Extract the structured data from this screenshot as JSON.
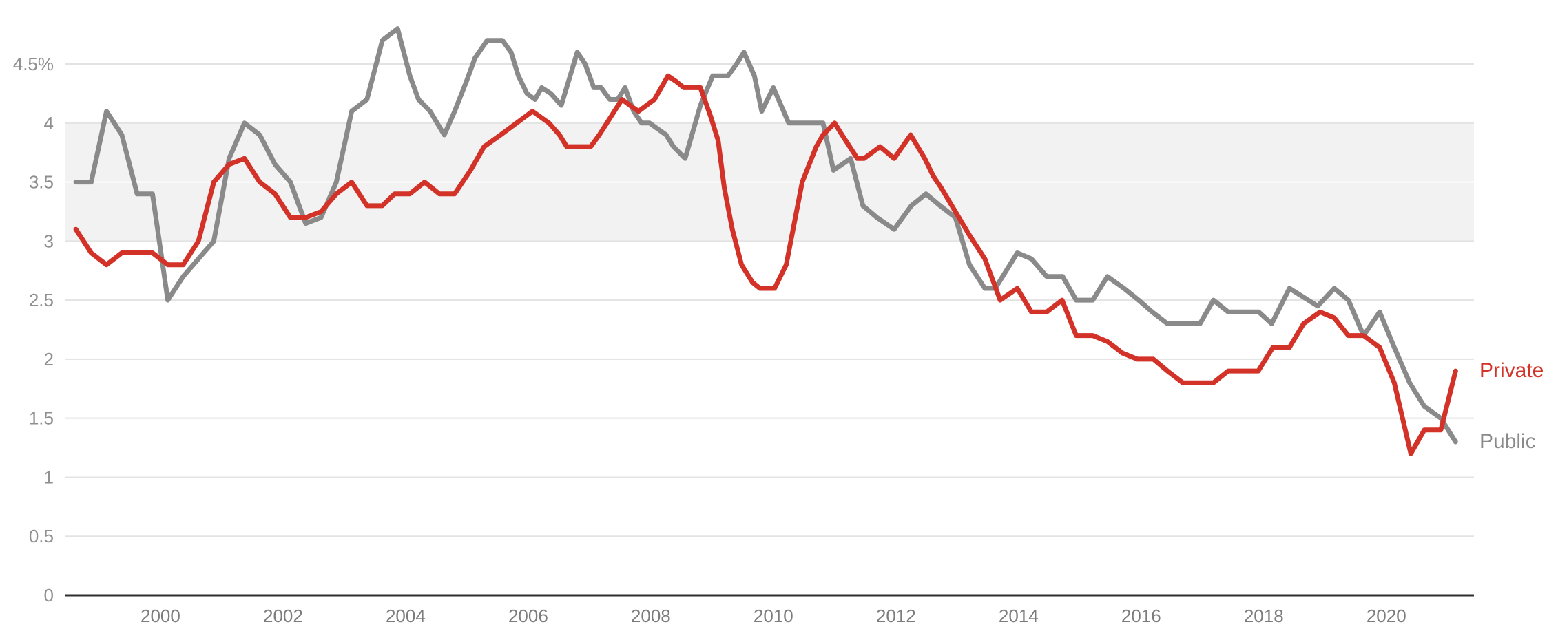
{
  "chart_data": {
    "type": "line",
    "title": "",
    "ylabel": "",
    "xlabel": "",
    "unit": "%",
    "xlim": [
      1998.45,
      2021.43
    ],
    "ylim": [
      0,
      4.85
    ],
    "grid": true,
    "legend_position": "end-of-line",
    "band": {
      "from": 3.0,
      "to": 4.0,
      "color": "#f2f2f2"
    },
    "gridline_color": "#e3e3e3",
    "band_gridline_color": "#ffffff",
    "axis_color": "#2f2f2f",
    "y_ticks": [
      {
        "label": "4.5%",
        "value": 4.5
      },
      {
        "label": "4",
        "value": 4.0
      },
      {
        "label": "3.5",
        "value": 3.5
      },
      {
        "label": "3",
        "value": 3.0
      },
      {
        "label": "2.5",
        "value": 2.5
      },
      {
        "label": "2",
        "value": 2.0
      },
      {
        "label": "1.5",
        "value": 1.5
      },
      {
        "label": "1",
        "value": 1.0
      },
      {
        "label": "0.5",
        "value": 0.5
      },
      {
        "label": "0",
        "value": 0.0
      }
    ],
    "x_ticks": [
      {
        "label": "2000",
        "value": 2000
      },
      {
        "label": "2002",
        "value": 2002
      },
      {
        "label": "2004",
        "value": 2004
      },
      {
        "label": "2006",
        "value": 2006
      },
      {
        "label": "2008",
        "value": 2008
      },
      {
        "label": "2010",
        "value": 2010
      },
      {
        "label": "2012",
        "value": 2012
      },
      {
        "label": "2014",
        "value": 2014
      },
      {
        "label": "2016",
        "value": 2016
      },
      {
        "label": "2018",
        "value": 2018
      },
      {
        "label": "2020",
        "value": 2020
      }
    ],
    "series": [
      {
        "name": "Private",
        "color": "#d23228",
        "points": [
          [
            1998.62,
            3.1
          ],
          [
            1998.87,
            2.9
          ],
          [
            1999.12,
            2.8
          ],
          [
            1999.37,
            2.9
          ],
          [
            1999.62,
            2.9
          ],
          [
            1999.87,
            2.9
          ],
          [
            2000.12,
            2.8
          ],
          [
            2000.37,
            2.8
          ],
          [
            2000.62,
            3.0
          ],
          [
            2000.87,
            3.5
          ],
          [
            2001.12,
            3.65
          ],
          [
            2001.37,
            3.7
          ],
          [
            2001.62,
            3.5
          ],
          [
            2001.87,
            3.4
          ],
          [
            2002.12,
            3.2
          ],
          [
            2002.37,
            3.2
          ],
          [
            2002.62,
            3.25
          ],
          [
            2002.87,
            3.4
          ],
          [
            2003.12,
            3.5
          ],
          [
            2003.37,
            3.3
          ],
          [
            2003.62,
            3.3
          ],
          [
            2003.82,
            3.4
          ],
          [
            2004.07,
            3.4
          ],
          [
            2004.31,
            3.5
          ],
          [
            2004.55,
            3.4
          ],
          [
            2004.8,
            3.4
          ],
          [
            2005.06,
            3.6
          ],
          [
            2005.28,
            3.8
          ],
          [
            2005.55,
            3.9
          ],
          [
            2005.81,
            4.0
          ],
          [
            2006.07,
            4.1
          ],
          [
            2006.34,
            4.0
          ],
          [
            2006.51,
            3.9
          ],
          [
            2006.63,
            3.8
          ],
          [
            2006.76,
            3.8
          ],
          [
            2007.02,
            3.8
          ],
          [
            2007.16,
            3.9
          ],
          [
            2007.53,
            4.2
          ],
          [
            2007.66,
            4.15
          ],
          [
            2007.8,
            4.1
          ],
          [
            2008.06,
            4.2
          ],
          [
            2008.28,
            4.4
          ],
          [
            2008.42,
            4.35
          ],
          [
            2008.54,
            4.3
          ],
          [
            2008.81,
            4.3
          ],
          [
            2008.98,
            4.05
          ],
          [
            2009.1,
            3.85
          ],
          [
            2009.2,
            3.45
          ],
          [
            2009.33,
            3.1
          ],
          [
            2009.48,
            2.8
          ],
          [
            2009.66,
            2.65
          ],
          [
            2009.78,
            2.6
          ],
          [
            2010.02,
            2.6
          ],
          [
            2010.21,
            2.8
          ],
          [
            2010.47,
            3.5
          ],
          [
            2010.7,
            3.8
          ],
          [
            2010.81,
            3.9
          ],
          [
            2011.0,
            4.0
          ],
          [
            2011.12,
            3.9
          ],
          [
            2011.37,
            3.7
          ],
          [
            2011.48,
            3.7
          ],
          [
            2011.74,
            3.8
          ],
          [
            2011.97,
            3.7
          ],
          [
            2012.24,
            3.9
          ],
          [
            2012.47,
            3.7
          ],
          [
            2012.61,
            3.55
          ],
          [
            2012.74,
            3.45
          ],
          [
            2012.97,
            3.25
          ],
          [
            2013.2,
            3.05
          ],
          [
            2013.45,
            2.85
          ],
          [
            2013.7,
            2.5
          ],
          [
            2013.98,
            2.6
          ],
          [
            2014.21,
            2.4
          ],
          [
            2014.46,
            2.4
          ],
          [
            2014.71,
            2.5
          ],
          [
            2014.94,
            2.2
          ],
          [
            2015.21,
            2.2
          ],
          [
            2015.45,
            2.15
          ],
          [
            2015.7,
            2.05
          ],
          [
            2015.94,
            2.0
          ],
          [
            2016.2,
            2.0
          ],
          [
            2016.43,
            1.9
          ],
          [
            2016.68,
            1.8
          ],
          [
            2016.94,
            1.8
          ],
          [
            2017.18,
            1.8
          ],
          [
            2017.42,
            1.9
          ],
          [
            2017.91,
            1.9
          ],
          [
            2018.15,
            2.1
          ],
          [
            2018.42,
            2.1
          ],
          [
            2018.65,
            2.3
          ],
          [
            2018.92,
            2.4
          ],
          [
            2019.15,
            2.35
          ],
          [
            2019.38,
            2.2
          ],
          [
            2019.63,
            2.2
          ],
          [
            2019.89,
            2.1
          ],
          [
            2020.13,
            1.8
          ],
          [
            2020.4,
            1.2
          ],
          [
            2020.62,
            1.4
          ],
          [
            2020.89,
            1.4
          ],
          [
            2021.13,
            1.9
          ]
        ]
      },
      {
        "name": "Public",
        "color": "#8a8a8a",
        "points": [
          [
            1998.62,
            3.5
          ],
          [
            1998.87,
            3.5
          ],
          [
            1999.12,
            4.1
          ],
          [
            1999.37,
            3.9
          ],
          [
            1999.62,
            3.4
          ],
          [
            1999.87,
            3.4
          ],
          [
            2000.12,
            2.5
          ],
          [
            2000.37,
            2.7
          ],
          [
            2000.62,
            2.85
          ],
          [
            2000.87,
            3.0
          ],
          [
            2001.12,
            3.7
          ],
          [
            2001.37,
            4.0
          ],
          [
            2001.62,
            3.9
          ],
          [
            2001.87,
            3.65
          ],
          [
            2002.12,
            3.5
          ],
          [
            2002.37,
            3.15
          ],
          [
            2002.62,
            3.2
          ],
          [
            2002.87,
            3.5
          ],
          [
            2003.12,
            4.1
          ],
          [
            2003.37,
            4.2
          ],
          [
            2003.62,
            4.7
          ],
          [
            2003.87,
            4.8
          ],
          [
            2004.07,
            4.4
          ],
          [
            2004.21,
            4.2
          ],
          [
            2004.4,
            4.1
          ],
          [
            2004.63,
            3.9
          ],
          [
            2004.8,
            4.1
          ],
          [
            2004.99,
            4.35
          ],
          [
            2005.13,
            4.55
          ],
          [
            2005.33,
            4.7
          ],
          [
            2005.58,
            4.7
          ],
          [
            2005.72,
            4.6
          ],
          [
            2005.84,
            4.4
          ],
          [
            2005.98,
            4.25
          ],
          [
            2006.11,
            4.2
          ],
          [
            2006.22,
            4.3
          ],
          [
            2006.37,
            4.25
          ],
          [
            2006.54,
            4.15
          ],
          [
            2006.8,
            4.6
          ],
          [
            2006.93,
            4.5
          ],
          [
            2007.07,
            4.3
          ],
          [
            2007.19,
            4.3
          ],
          [
            2007.33,
            4.2
          ],
          [
            2007.46,
            4.2
          ],
          [
            2007.58,
            4.3
          ],
          [
            2007.72,
            4.1
          ],
          [
            2007.85,
            4.0
          ],
          [
            2007.98,
            4.0
          ],
          [
            2008.25,
            3.9
          ],
          [
            2008.37,
            3.8
          ],
          [
            2008.56,
            3.7
          ],
          [
            2008.81,
            4.15
          ],
          [
            2009.01,
            4.4
          ],
          [
            2009.26,
            4.4
          ],
          [
            2009.4,
            4.5
          ],
          [
            2009.52,
            4.6
          ],
          [
            2009.69,
            4.4
          ],
          [
            2009.81,
            4.1
          ],
          [
            2010.0,
            4.3
          ],
          [
            2010.25,
            4.0
          ],
          [
            2010.81,
            4.0
          ],
          [
            2010.98,
            3.6
          ],
          [
            2011.26,
            3.7
          ],
          [
            2011.46,
            3.3
          ],
          [
            2011.69,
            3.2
          ],
          [
            2011.97,
            3.1
          ],
          [
            2012.25,
            3.3
          ],
          [
            2012.49,
            3.4
          ],
          [
            2012.72,
            3.3
          ],
          [
            2012.97,
            3.2
          ],
          [
            2013.2,
            2.8
          ],
          [
            2013.45,
            2.6
          ],
          [
            2013.62,
            2.6
          ],
          [
            2013.98,
            2.9
          ],
          [
            2014.21,
            2.85
          ],
          [
            2014.46,
            2.7
          ],
          [
            2014.72,
            2.7
          ],
          [
            2014.94,
            2.5
          ],
          [
            2015.21,
            2.5
          ],
          [
            2015.45,
            2.7
          ],
          [
            2015.72,
            2.6
          ],
          [
            2015.96,
            2.5
          ],
          [
            2016.18,
            2.4
          ],
          [
            2016.43,
            2.3
          ],
          [
            2016.96,
            2.3
          ],
          [
            2017.18,
            2.5
          ],
          [
            2017.42,
            2.4
          ],
          [
            2017.92,
            2.4
          ],
          [
            2018.13,
            2.3
          ],
          [
            2018.42,
            2.6
          ],
          [
            2018.88,
            2.45
          ],
          [
            2019.15,
            2.6
          ],
          [
            2019.38,
            2.5
          ],
          [
            2019.63,
            2.2
          ],
          [
            2019.89,
            2.4
          ],
          [
            2020.13,
            2.1
          ],
          [
            2020.38,
            1.8
          ],
          [
            2020.62,
            1.6
          ],
          [
            2020.89,
            1.5
          ],
          [
            2021.13,
            1.3
          ]
        ]
      }
    ]
  }
}
